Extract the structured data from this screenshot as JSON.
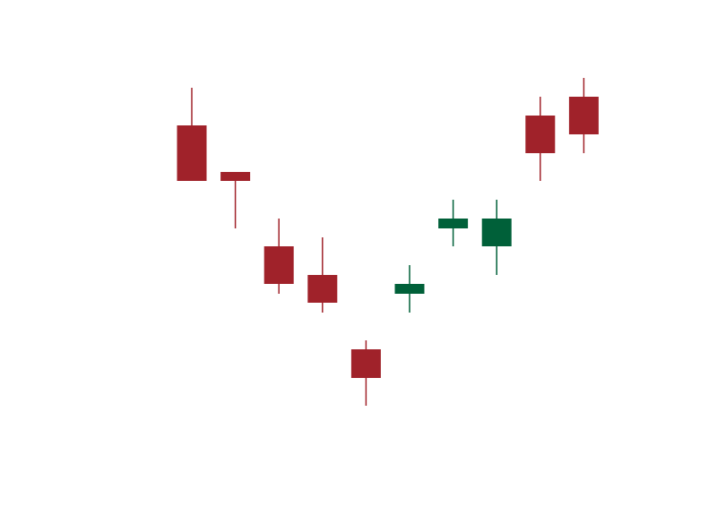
{
  "chart_data": {
    "type": "candlestick",
    "title": "",
    "xlabel": "",
    "ylabel": "",
    "x": [
      1,
      2,
      3,
      4,
      5,
      6,
      7,
      8,
      9,
      10
    ],
    "ylim": [
      0,
      575
    ],
    "colors": {
      "up": "#006039",
      "down": "#a0222a"
    },
    "series": [
      {
        "ohlc": [
          {
            "open": 435,
            "high": 477,
            "low": 373,
            "close": 373
          },
          {
            "open": 383,
            "high": 383,
            "low": 320,
            "close": 373
          },
          {
            "open": 300,
            "high": 331,
            "low": 247,
            "close": 258
          },
          {
            "open": 268,
            "high": 310,
            "low": 226,
            "close": 237
          },
          {
            "open": 185,
            "high": 195,
            "low": 122,
            "close": 153
          },
          {
            "open": 247,
            "high": 279,
            "low": 226,
            "close": 258
          },
          {
            "open": 320,
            "high": 352,
            "low": 300,
            "close": 331
          },
          {
            "open": 300,
            "high": 352,
            "low": 268,
            "close": 331
          },
          {
            "open": 446,
            "high": 467,
            "low": 373,
            "close": 404
          },
          {
            "open": 467,
            "high": 488,
            "low": 404,
            "close": 425
          }
        ]
      }
    ]
  }
}
